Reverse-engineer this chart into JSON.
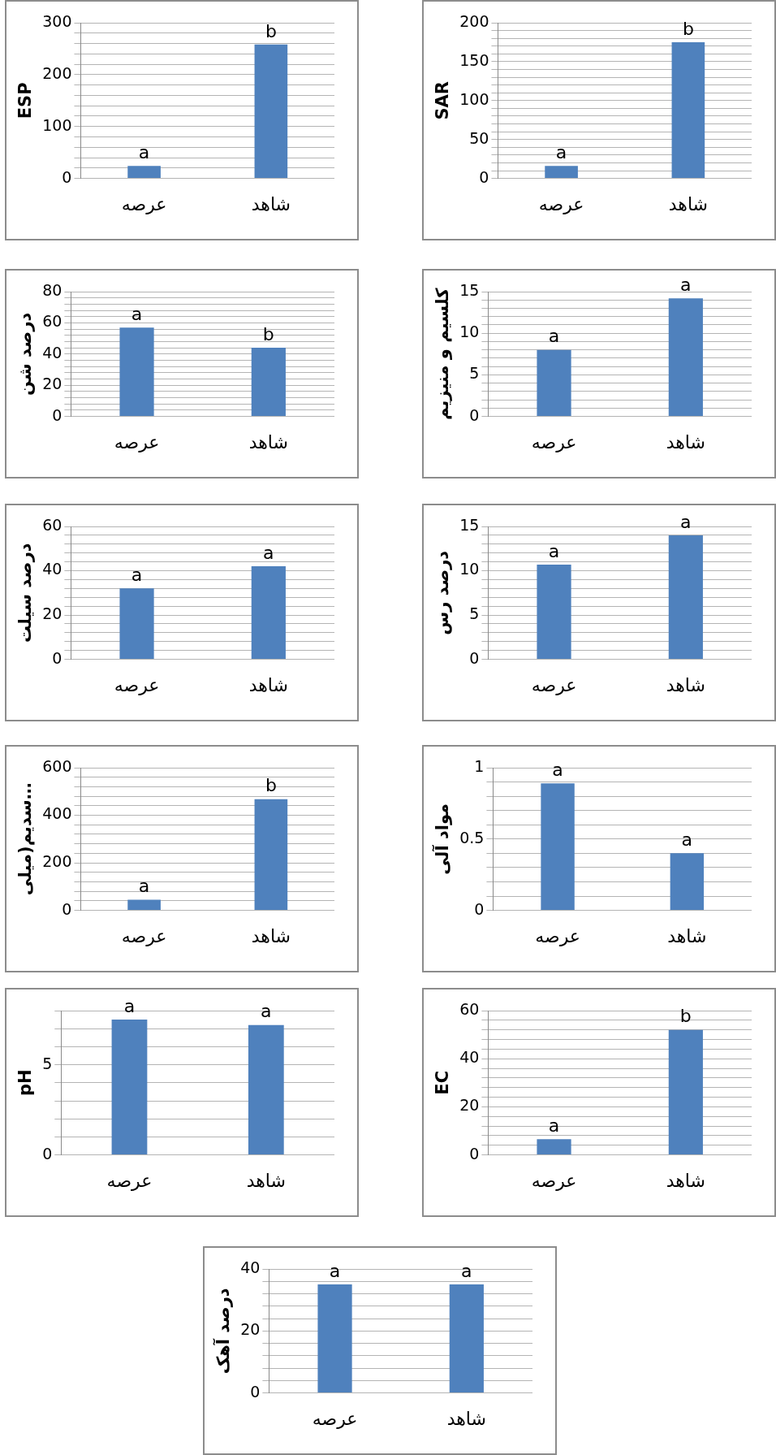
{
  "chart_data": [
    {
      "type": "bar",
      "ylabel": "ESP",
      "categories": [
        "عرصه",
        "شاهد"
      ],
      "values": [
        24,
        258
      ],
      "color": "#4f81bd",
      "ylim": [
        0,
        300
      ],
      "yticks": [
        0,
        {
          "value": 20,
          "label": null
        },
        {
          "value": 40,
          "label": null
        },
        {
          "value": 60,
          "label": null
        },
        {
          "value": 80,
          "label": null
        },
        100,
        {
          "value": 120,
          "label": null
        },
        {
          "value": 140,
          "label": null
        },
        {
          "value": 160,
          "label": null
        },
        {
          "value": 180,
          "label": null
        },
        200,
        {
          "value": 220,
          "label": null
        },
        {
          "value": 240,
          "label": null
        },
        {
          "value": 260,
          "label": null
        },
        {
          "value": 280,
          "label": null
        },
        300
      ],
      "grid": "y",
      "annotations": [
        {
          "text": "a",
          "x": "عرصه",
          "y": 24
        },
        {
          "text": "b",
          "x": "شاهد",
          "y": 258
        }
      ]
    },
    {
      "type": "bar",
      "ylabel": "SAR",
      "categories": [
        "عرصه",
        "شاهد"
      ],
      "values": [
        16,
        175
      ],
      "color": "#4f81bd",
      "ylim": [
        0,
        200
      ],
      "yticks": [
        0,
        {
          "value": 10,
          "label": null
        },
        {
          "value": 20,
          "label": null
        },
        {
          "value": 30,
          "label": null
        },
        {
          "value": 40,
          "label": null
        },
        50,
        {
          "value": 60,
          "label": null
        },
        {
          "value": 70,
          "label": null
        },
        {
          "value": 80,
          "label": null
        },
        {
          "value": 90,
          "label": null
        },
        100,
        {
          "value": 110,
          "label": null
        },
        {
          "value": 120,
          "label": null
        },
        {
          "value": 130,
          "label": null
        },
        {
          "value": 140,
          "label": null
        },
        150,
        {
          "value": 160,
          "label": null
        },
        {
          "value": 170,
          "label": null
        },
        {
          "value": 180,
          "label": null
        },
        {
          "value": 190,
          "label": null
        },
        200
      ],
      "grid": "y",
      "annotations": [
        {
          "text": "a",
          "x": "عرصه",
          "y": 16
        },
        {
          "text": "b",
          "x": "شاهد",
          "y": 175
        }
      ]
    },
    {
      "type": "bar",
      "ylabel": "درصد شن",
      "categories": [
        "عرصه",
        "شاهد"
      ],
      "values": [
        57,
        44
      ],
      "color": "#4f81bd",
      "ylim": [
        0,
        80
      ],
      "yticks": [
        0,
        {
          "value": 4,
          "label": null
        },
        {
          "value": 8,
          "label": null
        },
        {
          "value": 12,
          "label": null
        },
        {
          "value": 16,
          "label": null
        },
        20,
        {
          "value": 24,
          "label": null
        },
        {
          "value": 28,
          "label": null
        },
        {
          "value": 32,
          "label": null
        },
        {
          "value": 36,
          "label": null
        },
        40,
        {
          "value": 44,
          "label": null
        },
        {
          "value": 48,
          "label": null
        },
        {
          "value": 52,
          "label": null
        },
        {
          "value": 56,
          "label": null
        },
        60,
        {
          "value": 64,
          "label": null
        },
        {
          "value": 68,
          "label": null
        },
        {
          "value": 72,
          "label": null
        },
        {
          "value": 76,
          "label": null
        },
        80
      ],
      "grid": "y",
      "annotations": [
        {
          "text": "a",
          "x": "عرصه",
          "y": 57
        },
        {
          "text": "b",
          "x": "شاهد",
          "y": 44
        }
      ]
    },
    {
      "type": "bar",
      "ylabel": "کلسیم و منیزیم",
      "categories": [
        "عرصه",
        "شاهد"
      ],
      "values": [
        8,
        14.2
      ],
      "color": "#4f81bd",
      "ylim": [
        0,
        15
      ],
      "yticks": [
        0,
        {
          "value": 1,
          "label": null
        },
        {
          "value": 2,
          "label": null
        },
        {
          "value": 3,
          "label": null
        },
        {
          "value": 4,
          "label": null
        },
        5,
        {
          "value": 6,
          "label": null
        },
        {
          "value": 7,
          "label": null
        },
        {
          "value": 8,
          "label": null
        },
        {
          "value": 9,
          "label": null
        },
        10,
        {
          "value": 11,
          "label": null
        },
        {
          "value": 12,
          "label": null
        },
        {
          "value": 13,
          "label": null
        },
        {
          "value": 14,
          "label": null
        },
        15
      ],
      "grid": "y",
      "annotations": [
        {
          "text": "a",
          "x": "عرصه",
          "y": 8
        },
        {
          "text": "a",
          "x": "شاهد",
          "y": 14.2
        }
      ]
    },
    {
      "type": "bar",
      "ylabel": "درصد سیلت",
      "categories": [
        "عرصه",
        "شاهد"
      ],
      "values": [
        32,
        42
      ],
      "color": "#4f81bd",
      "ylim": [
        0,
        60
      ],
      "yticks": [
        0,
        {
          "value": 4,
          "label": null
        },
        {
          "value": 8,
          "label": null
        },
        {
          "value": 12,
          "label": null
        },
        {
          "value": 16,
          "label": null
        },
        20,
        {
          "value": 24,
          "label": null
        },
        {
          "value": 28,
          "label": null
        },
        {
          "value": 32,
          "label": null
        },
        {
          "value": 36,
          "label": null
        },
        40,
        {
          "value": 44,
          "label": null
        },
        {
          "value": 48,
          "label": null
        },
        {
          "value": 52,
          "label": null
        },
        {
          "value": 56,
          "label": null
        },
        60
      ],
      "grid": "y",
      "annotations": [
        {
          "text": "a",
          "x": "عرصه",
          "y": 32
        },
        {
          "text": "a",
          "x": "شاهد",
          "y": 42
        }
      ]
    },
    {
      "type": "bar",
      "ylabel": "درصد رس",
      "categories": [
        "عرصه",
        "شاهد"
      ],
      "values": [
        10.7,
        14
      ],
      "color": "#4f81bd",
      "ylim": [
        0,
        15
      ],
      "yticks": [
        0,
        {
          "value": 1,
          "label": null
        },
        {
          "value": 2,
          "label": null
        },
        {
          "value": 3,
          "label": null
        },
        {
          "value": 4,
          "label": null
        },
        5,
        {
          "value": 6,
          "label": null
        },
        {
          "value": 7,
          "label": null
        },
        {
          "value": 8,
          "label": null
        },
        {
          "value": 9,
          "label": null
        },
        10,
        {
          "value": 11,
          "label": null
        },
        {
          "value": 12,
          "label": null
        },
        {
          "value": 13,
          "label": null
        },
        {
          "value": 14,
          "label": null
        },
        15
      ],
      "grid": "y",
      "annotations": [
        {
          "text": "a",
          "x": "عرصه",
          "y": 10.7
        },
        {
          "text": "a",
          "x": "شاهد",
          "y": 14
        }
      ]
    },
    {
      "type": "bar",
      "ylabel": "سدیم(میلی…",
      "categories": [
        "عرصه",
        "شاهد"
      ],
      "values": [
        45,
        468
      ],
      "color": "#4f81bd",
      "ylim": [
        0,
        600
      ],
      "yticks": [
        0,
        {
          "value": 40,
          "label": null
        },
        {
          "value": 80,
          "label": null
        },
        {
          "value": 120,
          "label": null
        },
        {
          "value": 160,
          "label": null
        },
        200,
        {
          "value": 240,
          "label": null
        },
        {
          "value": 280,
          "label": null
        },
        {
          "value": 320,
          "label": null
        },
        {
          "value": 360,
          "label": null
        },
        400,
        {
          "value": 440,
          "label": null
        },
        {
          "value": 480,
          "label": null
        },
        {
          "value": 520,
          "label": null
        },
        {
          "value": 560,
          "label": null
        },
        600
      ],
      "grid": "y",
      "annotations": [
        {
          "text": "a",
          "x": "عرصه",
          "y": 45
        },
        {
          "text": "b",
          "x": "شاهد",
          "y": 468
        }
      ]
    },
    {
      "type": "bar",
      "ylabel": "مواد آلی",
      "categories": [
        "عرصه",
        "شاهد"
      ],
      "values": [
        0.89,
        0.4
      ],
      "color": "#4f81bd",
      "ylim": [
        0,
        1
      ],
      "yticks": [
        0,
        {
          "value": 0.1,
          "label": null
        },
        {
          "value": 0.2,
          "label": null
        },
        {
          "value": 0.3,
          "label": null
        },
        {
          "value": 0.4,
          "label": null
        },
        0.5,
        {
          "value": 0.6,
          "label": null
        },
        {
          "value": 0.7,
          "label": null
        },
        {
          "value": 0.8,
          "label": null
        },
        {
          "value": 0.9,
          "label": null
        },
        1
      ],
      "grid": "y",
      "annotations": [
        {
          "text": "a",
          "x": "عرصه",
          "y": 0.89
        },
        {
          "text": "a",
          "x": "شاهد",
          "y": 0.4
        }
      ]
    },
    {
      "type": "bar",
      "ylabel": "pH",
      "categories": [
        "عرصه",
        "شاهد"
      ],
      "values": [
        7.5,
        7.2
      ],
      "color": "#4f81bd",
      "ylim": [
        0,
        8
      ],
      "yticks": [
        0,
        {
          "value": 1,
          "label": null
        },
        {
          "value": 2,
          "label": null
        },
        {
          "value": 3,
          "label": null
        },
        {
          "value": 4,
          "label": null
        },
        5,
        {
          "value": 6,
          "label": null
        },
        {
          "value": 7,
          "label": null
        },
        {
          "value": 8,
          "label": null
        }
      ],
      "grid": "y",
      "annotations": [
        {
          "text": "a",
          "x": "عرصه",
          "y": 7.5
        },
        {
          "text": "a",
          "x": "شاهد",
          "y": 7.2
        }
      ]
    },
    {
      "type": "bar",
      "ylabel": "EC",
      "categories": [
        "عرصه",
        "شاهد"
      ],
      "values": [
        6.5,
        52
      ],
      "color": "#4f81bd",
      "ylim": [
        0,
        60
      ],
      "yticks": [
        0,
        {
          "value": 4,
          "label": null
        },
        {
          "value": 8,
          "label": null
        },
        {
          "value": 12,
          "label": null
        },
        {
          "value": 16,
          "label": null
        },
        20,
        {
          "value": 24,
          "label": null
        },
        {
          "value": 28,
          "label": null
        },
        {
          "value": 32,
          "label": null
        },
        {
          "value": 36,
          "label": null
        },
        40,
        {
          "value": 44,
          "label": null
        },
        {
          "value": 48,
          "label": null
        },
        {
          "value": 52,
          "label": null
        },
        {
          "value": 56,
          "label": null
        },
        60
      ],
      "grid": "y",
      "annotations": [
        {
          "text": "a",
          "x": "عرصه",
          "y": 6.5
        },
        {
          "text": "b",
          "x": "شاهد",
          "y": 52
        }
      ]
    },
    {
      "type": "bar",
      "ylabel": "درصد آهک",
      "categories": [
        "عرصه",
        "شاهد"
      ],
      "values": [
        35,
        35
      ],
      "color": "#4f81bd",
      "ylim": [
        0,
        40
      ],
      "yticks": [
        0,
        {
          "value": 4,
          "label": null
        },
        {
          "value": 8,
          "label": null
        },
        {
          "value": 12,
          "label": null
        },
        {
          "value": 16,
          "label": null
        },
        20,
        {
          "value": 24,
          "label": null
        },
        {
          "value": 28,
          "label": null
        },
        {
          "value": 32,
          "label": null
        },
        {
          "value": 36,
          "label": null
        },
        40
      ],
      "grid": "y",
      "annotations": [
        {
          "text": "a",
          "x": "عرصه",
          "y": 35
        },
        {
          "text": "a",
          "x": "شاهد",
          "y": 35
        }
      ]
    }
  ]
}
